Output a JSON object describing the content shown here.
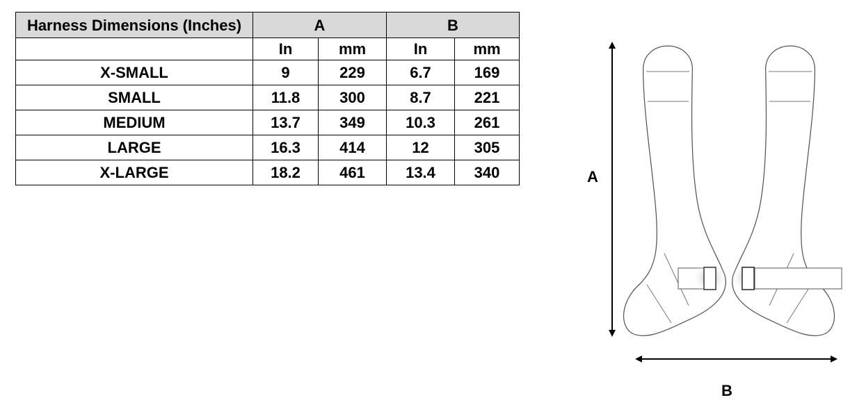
{
  "table": {
    "header": [
      "Harness Dimensions (Inches)",
      "A",
      "B"
    ],
    "subheader": [
      "In",
      "mm",
      "In",
      "mm"
    ],
    "rows": [
      [
        "X-SMALL",
        9,
        229,
        6.7,
        169
      ],
      [
        "SMALL",
        11.8,
        300,
        8.7,
        221
      ],
      [
        "MEDIUM",
        13.7,
        349,
        10.3,
        261
      ],
      [
        "LARGE",
        16.3,
        414,
        12,
        305
      ],
      [
        "X-LARGE",
        18.2,
        461,
        13.4,
        340
      ]
    ]
  },
  "diagram": {
    "label_a": "A",
    "label_b": "B"
  }
}
